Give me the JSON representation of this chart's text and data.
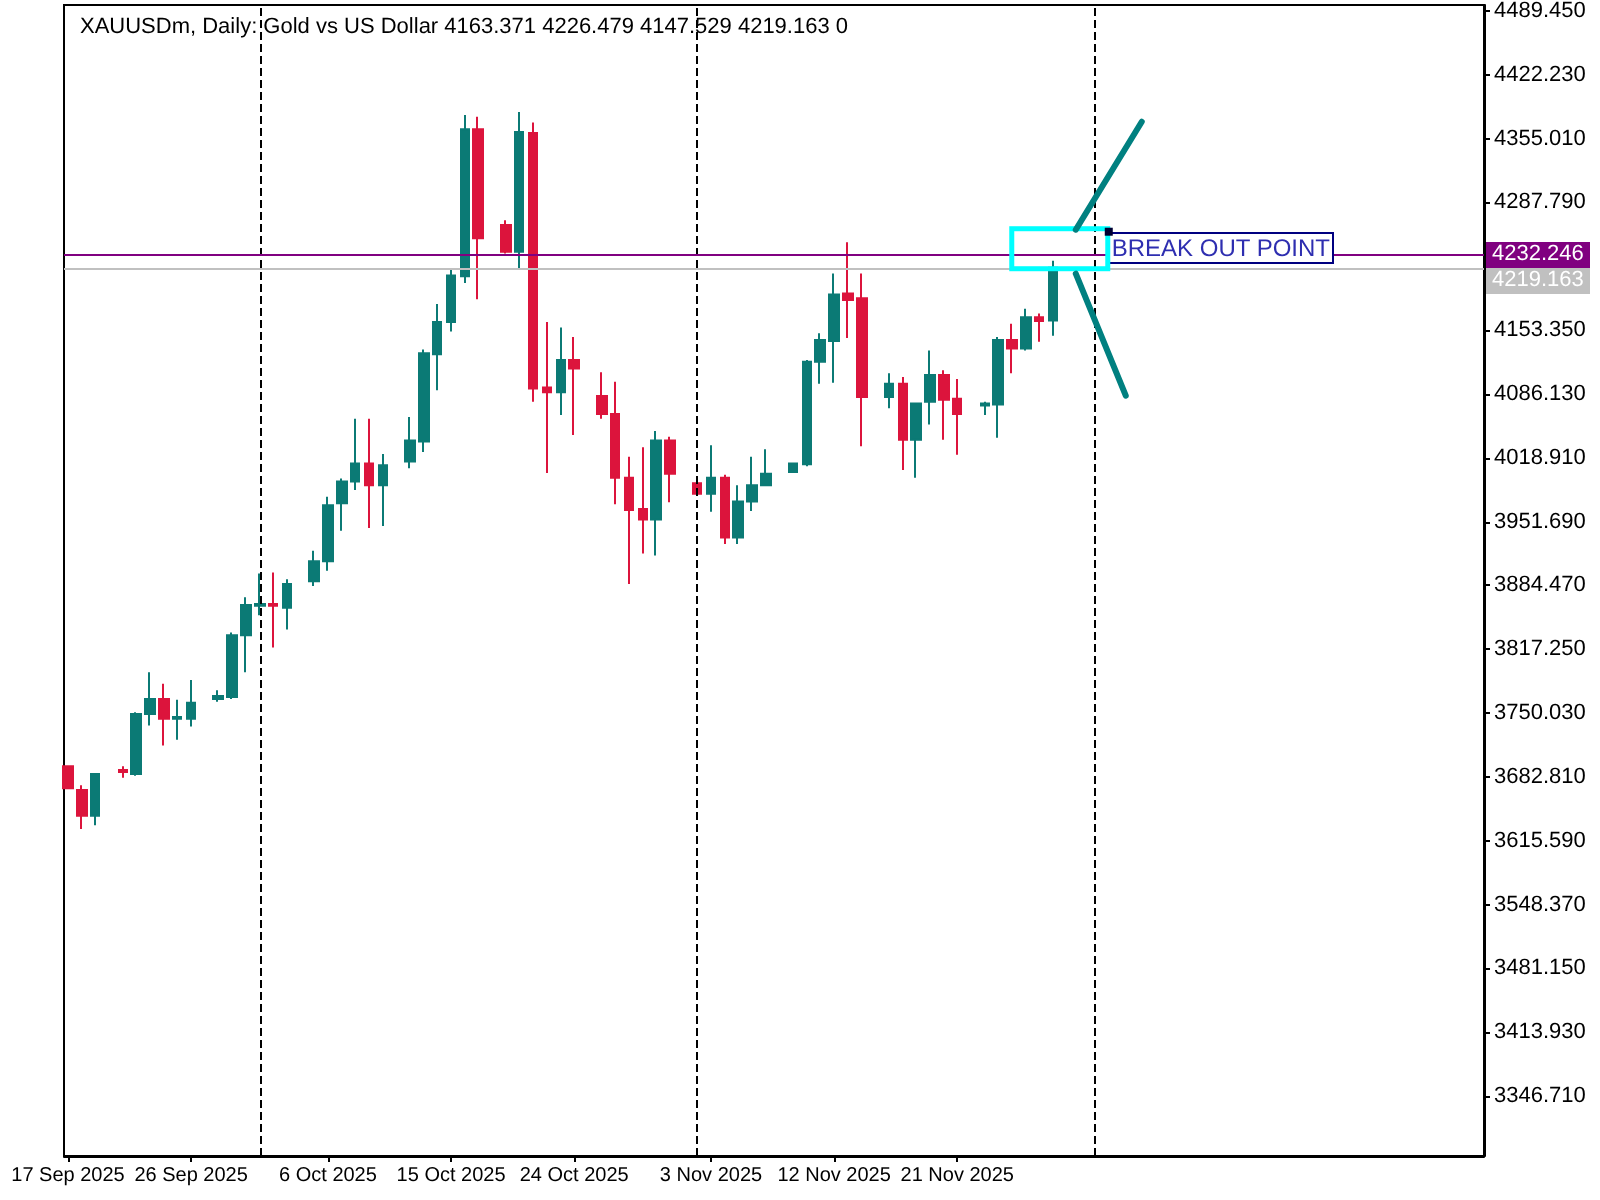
{
  "chart_data": {
    "type": "candlestick",
    "title": "XAUUSDm, Daily: Gold vs US Dollar 4163.371 4226.479 4147.529 4219.163 0",
    "x": [
      "2025-09-17",
      "2025-09-18",
      "2025-09-19",
      "2025-09-21",
      "2025-09-22",
      "2025-09-23",
      "2025-09-24",
      "2025-09-25",
      "2025-09-26",
      "2025-09-28",
      "2025-09-29",
      "2025-09-30",
      "2025-10-01",
      "2025-10-02",
      "2025-10-03",
      "2025-10-05",
      "2025-10-06",
      "2025-10-07",
      "2025-10-08",
      "2025-10-09",
      "2025-10-10",
      "2025-10-12",
      "2025-10-13",
      "2025-10-14",
      "2025-10-15",
      "2025-10-16",
      "2025-10-17",
      "2025-10-19",
      "2025-10-20",
      "2025-10-21",
      "2025-10-22",
      "2025-10-23",
      "2025-10-24",
      "2025-10-26",
      "2025-10-27",
      "2025-10-28",
      "2025-10-29",
      "2025-10-30",
      "2025-10-31",
      "2025-11-02",
      "2025-11-03",
      "2025-11-04",
      "2025-11-05",
      "2025-11-06",
      "2025-11-07",
      "2025-11-09",
      "2025-11-10",
      "2025-11-11",
      "2025-11-12",
      "2025-11-13",
      "2025-11-14",
      "2025-11-16",
      "2025-11-17",
      "2025-11-18",
      "2025-11-19",
      "2025-11-20",
      "2025-11-21",
      "2025-11-23",
      "2025-11-24",
      "2025-11-25",
      "2025-11-26",
      "2025-11-27",
      "2025-11-28"
    ],
    "ohlc": [
      [
        3694,
        3694,
        3671,
        3671
      ],
      [
        3669,
        3674,
        3628,
        3642
      ],
      [
        3642,
        3687,
        3632,
        3686
      ],
      [
        3690,
        3694,
        3682,
        3688
      ],
      [
        3686,
        3751,
        3684,
        3749
      ],
      [
        3749,
        3793,
        3737,
        3765
      ],
      [
        3765,
        3781,
        3716,
        3744
      ],
      [
        3744,
        3764,
        3722,
        3746
      ],
      [
        3744,
        3785,
        3736,
        3761
      ],
      [
        3765,
        3774,
        3762,
        3768
      ],
      [
        3767,
        3835,
        3765,
        3832
      ],
      [
        3832,
        3872,
        3793,
        3864
      ],
      [
        3863,
        3897,
        3853,
        3865
      ],
      [
        3865,
        3898,
        3819,
        3863
      ],
      [
        3861,
        3891,
        3838,
        3886
      ],
      [
        3889,
        3921,
        3884,
        3910
      ],
      [
        3910,
        3978,
        3900,
        3969
      ],
      [
        3971,
        3997,
        3942,
        3994
      ],
      [
        3994,
        4060,
        3985,
        4013
      ],
      [
        4013,
        4060,
        3945,
        3990
      ],
      [
        3990,
        4023,
        3947,
        4011
      ],
      [
        4015,
        4062,
        4008,
        4037
      ],
      [
        4036,
        4133,
        4025,
        4129
      ],
      [
        4128,
        4181,
        4090,
        4162
      ],
      [
        4162,
        4218,
        4152,
        4211
      ],
      [
        4210,
        4380,
        4203,
        4365
      ],
      [
        4365,
        4378,
        4186,
        4250
      ],
      [
        4264,
        4269,
        4234,
        4236
      ],
      [
        4236,
        4383,
        4217,
        4362
      ],
      [
        4361,
        4372,
        4078,
        4092
      ],
      [
        4093,
        4162,
        4003,
        4088
      ],
      [
        4088,
        4156,
        4064,
        4122
      ],
      [
        4122,
        4146,
        4043,
        4113
      ],
      [
        4084,
        4109,
        4060,
        4065
      ],
      [
        4065,
        4099,
        3970,
        3998
      ],
      [
        3998,
        4020,
        3886,
        3964
      ],
      [
        3965,
        4030,
        3918,
        3954
      ],
      [
        3954,
        4047,
        3916,
        4037
      ],
      [
        4037,
        4041,
        3972,
        4002
      ],
      [
        3992,
        3998,
        3980,
        3981
      ],
      [
        3981,
        4032,
        3962,
        3998
      ],
      [
        3998,
        4001,
        3928,
        3935
      ],
      [
        3935,
        3990,
        3928,
        3973
      ],
      [
        3973,
        4020,
        3963,
        3990
      ],
      [
        3990,
        4028,
        3989,
        4002
      ],
      [
        4004,
        4014,
        4004,
        4013
      ],
      [
        4012,
        4122,
        4010,
        4120
      ],
      [
        4120,
        4150,
        4097,
        4143
      ],
      [
        4142,
        4213,
        4098,
        4191
      ],
      [
        4192,
        4246,
        4145,
        4185
      ],
      [
        4187,
        4213,
        4031,
        4083
      ],
      [
        4083,
        4108,
        4071,
        4097
      ],
      [
        4097,
        4104,
        4006,
        4038
      ],
      [
        4038,
        4077,
        3998,
        4076
      ],
      [
        4078,
        4132,
        4054,
        4106
      ],
      [
        4106,
        4111,
        4038,
        4080
      ],
      [
        4081,
        4102,
        4022,
        4065
      ],
      [
        4074,
        4078,
        4064,
        4076
      ],
      [
        4075,
        4146,
        4040,
        4143
      ],
      [
        4143,
        4160,
        4108,
        4134
      ],
      [
        4134,
        4176,
        4132,
        4167
      ],
      [
        4167,
        4171,
        4141,
        4163
      ],
      [
        4163.371,
        4226.479,
        4147.529,
        4219.163
      ]
    ],
    "colors": [
      "#dc143c",
      "#dc143c",
      "#0b7a75",
      "#dc143c",
      "#0b7a75",
      "#0b7a75",
      "#dc143c",
      "#0b7a75",
      "#0b7a75",
      "#0b7a75",
      "#0b7a75",
      "#0b7a75",
      "#0b7a75",
      "#dc143c",
      "#0b7a75",
      "#0b7a75",
      "#0b7a75",
      "#0b7a75",
      "#0b7a75",
      "#dc143c",
      "#0b7a75",
      "#0b7a75",
      "#0b7a75",
      "#0b7a75",
      "#0b7a75",
      "#0b7a75",
      "#dc143c",
      "#dc143c",
      "#0b7a75",
      "#dc143c",
      "#dc143c",
      "#0b7a75",
      "#dc143c",
      "#dc143c",
      "#dc143c",
      "#dc143c",
      "#dc143c",
      "#0b7a75",
      "#dc143c",
      "#dc143c",
      "#0b7a75",
      "#dc143c",
      "#0b7a75",
      "#0b7a75",
      "#0b7a75",
      "#0b7a75",
      "#0b7a75",
      "#0b7a75",
      "#0b7a75",
      "#dc143c",
      "#dc143c",
      "#0b7a75",
      "#dc143c",
      "#0b7a75",
      "#0b7a75",
      "#dc143c",
      "#dc143c",
      "#0b7a75",
      "#0b7a75",
      "#dc143c",
      "#0b7a75",
      "#dc143c",
      "#0b7a75"
    ],
    "xlim": [
      "2025-09-16T17:00",
      "2025-12-29T12:00"
    ],
    "xticks": [
      {
        "value": "2025-09-17",
        "label": "17 Sep 2025"
      },
      {
        "value": "2025-09-26",
        "label": "26 Sep 2025"
      },
      {
        "value": "2025-10-06",
        "label": "6 Oct 2025"
      },
      {
        "value": "2025-10-15",
        "label": "15 Oct 2025"
      },
      {
        "value": "2025-10-24",
        "label": "24 Oct 2025"
      },
      {
        "value": "2025-11-03",
        "label": "3 Nov 2025"
      },
      {
        "value": "2025-11-12",
        "label": "12 Nov 2025"
      },
      {
        "value": "2025-11-21",
        "label": "21 Nov 2025"
      }
    ],
    "ylim": [
      3283.6,
      4495.7
    ],
    "yticks": [
      {
        "value": 4489.45,
        "label": "4489.450"
      },
      {
        "value": 4422.23,
        "label": "4422.230"
      },
      {
        "value": 4355.01,
        "label": "4355.010"
      },
      {
        "value": 4287.79,
        "label": "4287.790"
      },
      {
        "value": 4153.35,
        "label": "4153.350"
      },
      {
        "value": 4086.13,
        "label": "4086.130"
      },
      {
        "value": 4018.91,
        "label": "4018.910"
      },
      {
        "value": 3951.69,
        "label": "3951.690"
      },
      {
        "value": 3884.47,
        "label": "3884.470"
      },
      {
        "value": 3817.25,
        "label": "3817.250"
      },
      {
        "value": 3750.03,
        "label": "3750.030"
      },
      {
        "value": 3682.81,
        "label": "3682.810"
      },
      {
        "value": 3615.59,
        "label": "3615.590"
      },
      {
        "value": 3548.37,
        "label": "3548.370"
      },
      {
        "value": 3481.15,
        "label": "3481.150"
      },
      {
        "value": 3413.93,
        "label": "3413.930"
      },
      {
        "value": 3346.71,
        "label": "3346.710"
      }
    ],
    "ref_lines": [
      {
        "axis": "x",
        "value": "2025-10-01",
        "color": "#000000",
        "line_style": "dashed"
      },
      {
        "axis": "x",
        "value": "2025-11-02",
        "color": "#000000",
        "line_style": "dashed"
      },
      {
        "axis": "x",
        "value": "2025-12-01",
        "color": "#000000",
        "line_style": "dashed"
      },
      {
        "axis": "y",
        "value": 4232.246,
        "label": "4232.246",
        "color": "#800080"
      },
      {
        "axis": "y",
        "value": 4219.163,
        "label": "4219.163",
        "color": "#c0c0c0"
      }
    ],
    "annotations": [
      {
        "text": "BREAK OUT POINT",
        "x": "2025-12-02",
        "y": 4257
      }
    ],
    "grid": false
  }
}
